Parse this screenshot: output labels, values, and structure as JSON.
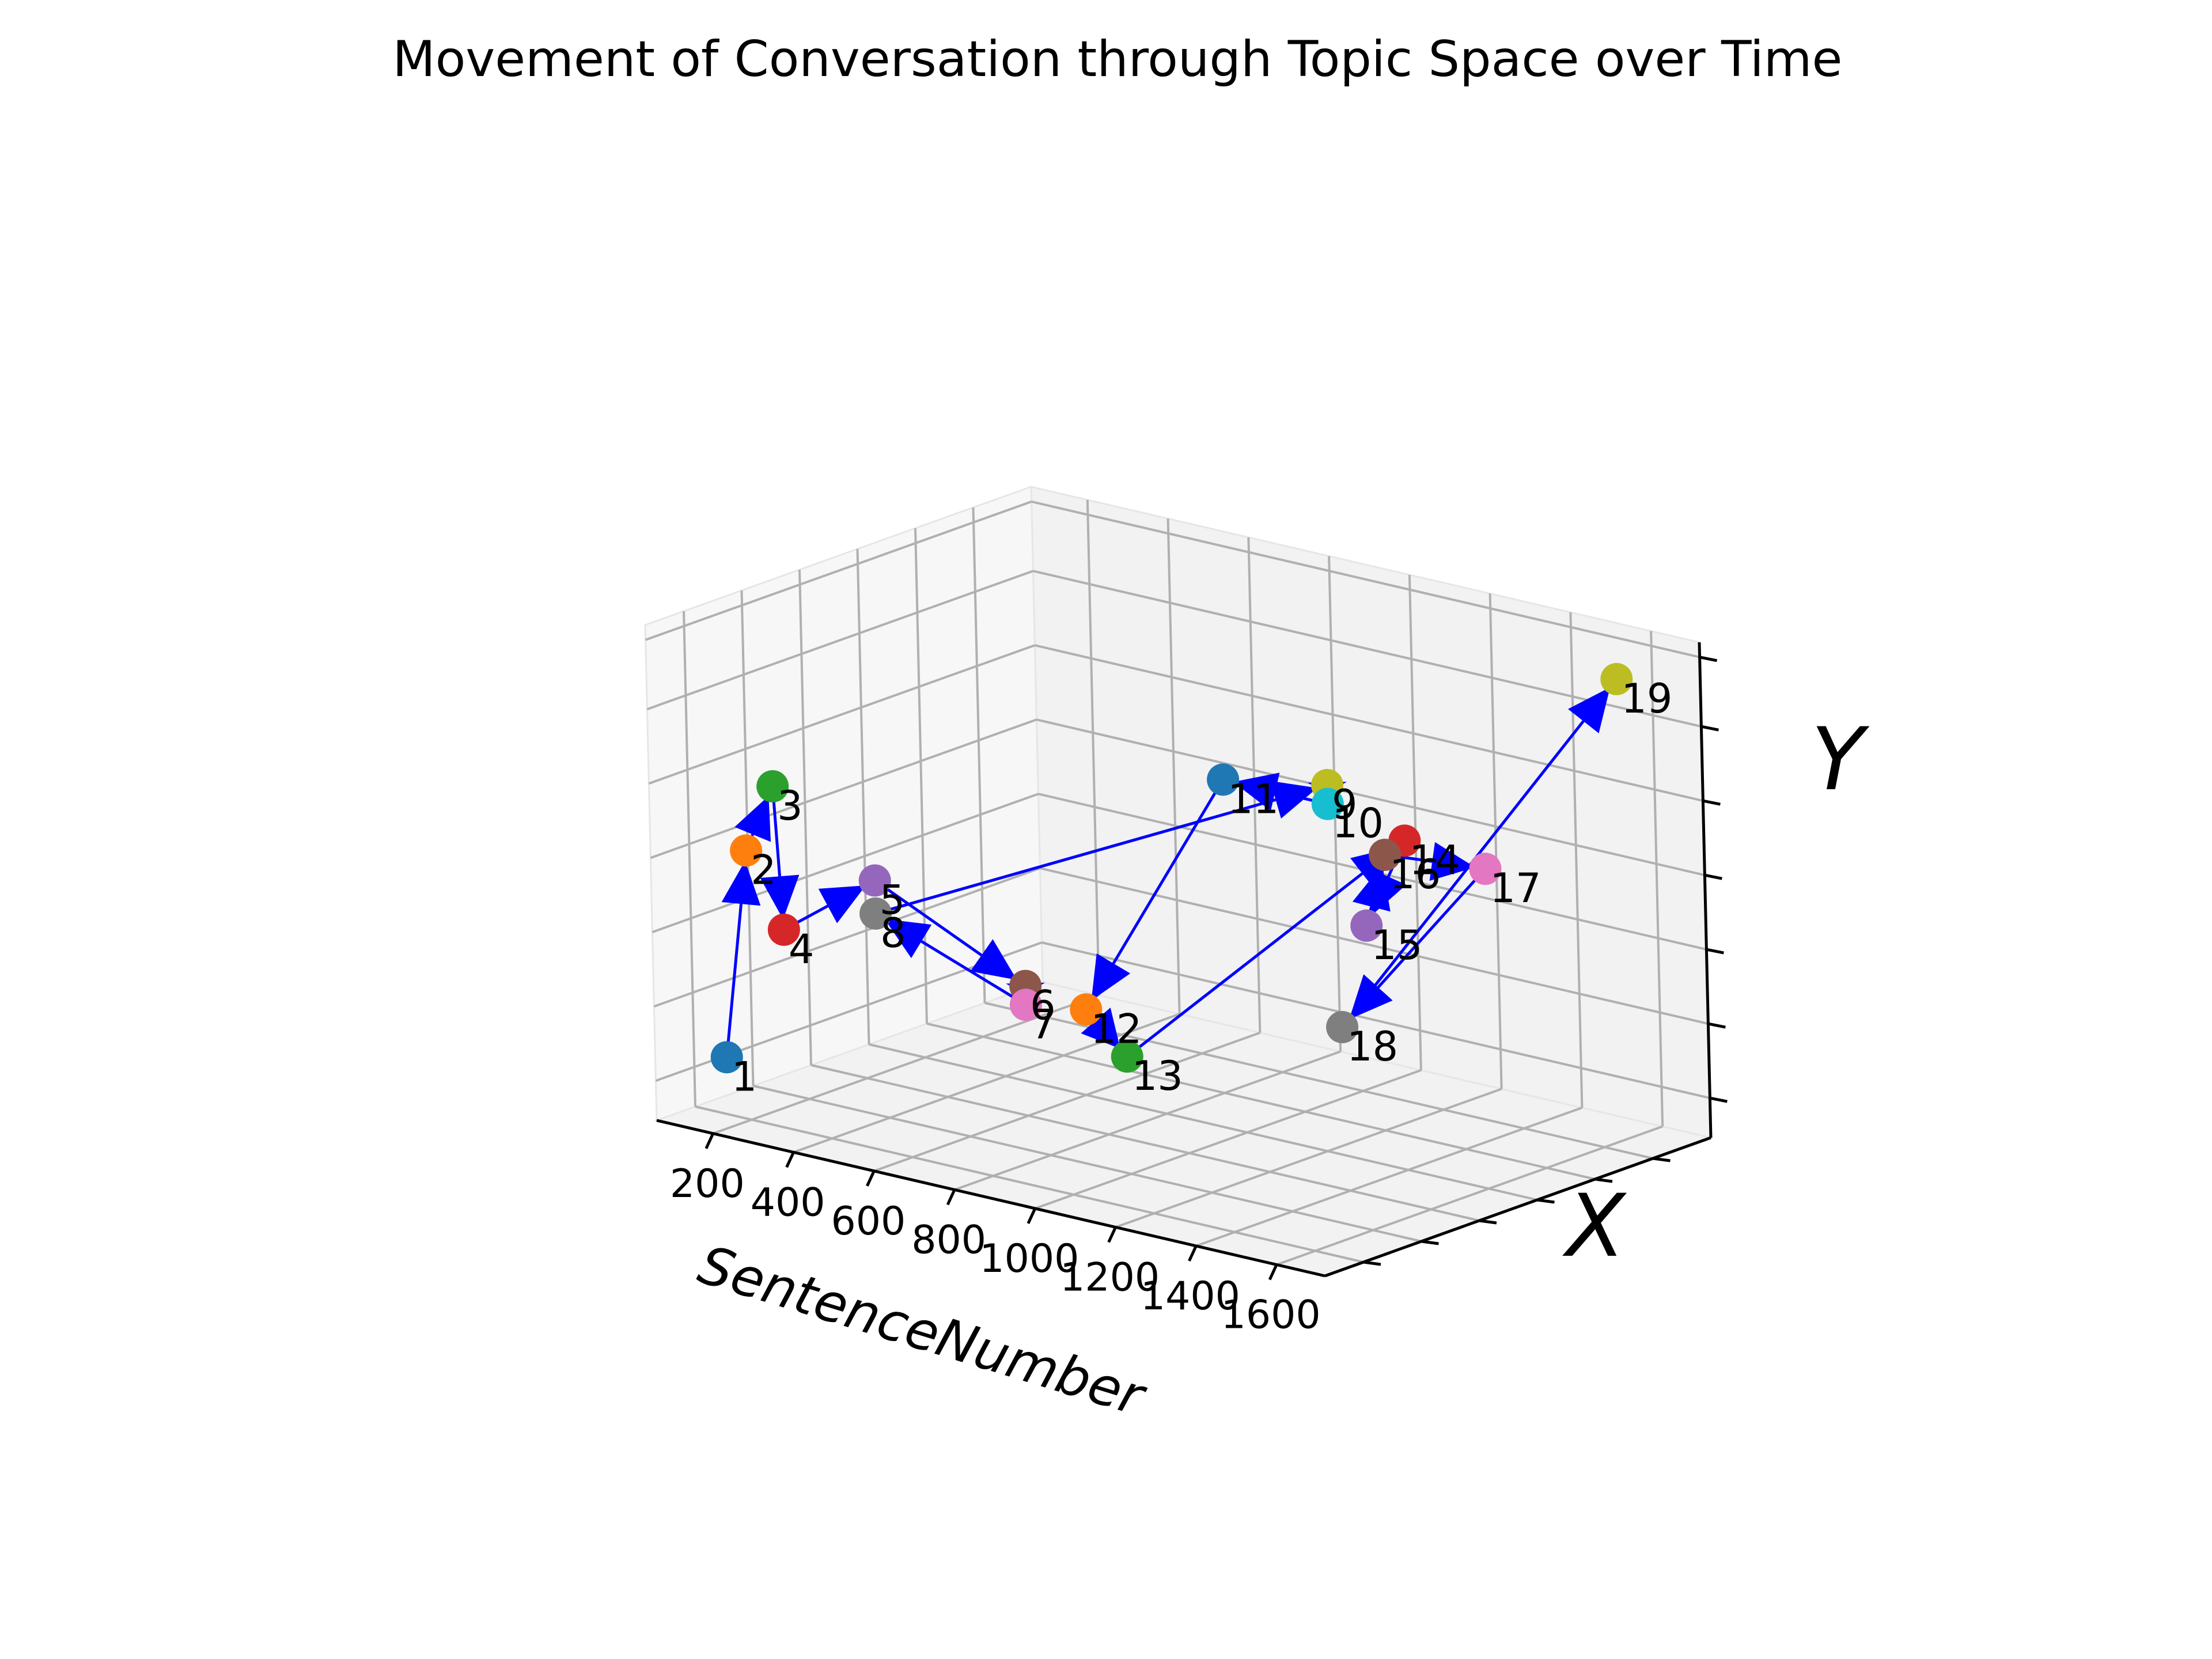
{
  "chart_data": {
    "type": "scatter",
    "projection": "3d",
    "title": "Movement of Conversation through Topic Space over Time",
    "xlabel": "SentenceNumber",
    "ylabel": "X",
    "zlabel": "Y",
    "xticks": [
      "200",
      "400",
      "600",
      "800",
      "1000",
      "1200",
      "1400",
      "1600"
    ],
    "arrow_color": "#0000ff",
    "points": [
      {
        "label": "1",
        "x": 100,
        "y": 0.0,
        "z": 0.1,
        "color": "#1f77b4"
      },
      {
        "label": "2",
        "x": 160,
        "y": 0.0,
        "z": 0.55,
        "color": "#ff7f0e"
      },
      {
        "label": "3",
        "x": 230,
        "y": 0.0,
        "z": 0.7,
        "color": "#2ca02c"
      },
      {
        "label": "4",
        "x": 250,
        "y": 0.0,
        "z": 0.4,
        "color": "#d62728"
      },
      {
        "label": "5",
        "x": 480,
        "y": 0.0,
        "z": 0.55,
        "color": "#9467bd"
      },
      {
        "label": "6",
        "x": 850,
        "y": 0.0,
        "z": 0.4,
        "color": "#8c564b"
      },
      {
        "label": "7",
        "x": 850,
        "y": 0.0,
        "z": 0.36,
        "color": "#e377c2"
      },
      {
        "label": "8",
        "x": 480,
        "y": 0.0,
        "z": 0.48,
        "color": "#7f7f7f"
      },
      {
        "label": "9",
        "x": 1060,
        "y": 0.2,
        "z": 0.7,
        "color": "#bcbd22"
      },
      {
        "label": "10",
        "x": 1060,
        "y": 0.2,
        "z": 0.66,
        "color": "#17becf"
      },
      {
        "label": "11",
        "x": 800,
        "y": 0.2,
        "z": 0.66,
        "color": "#1f77b4"
      },
      {
        "label": "12",
        "x": 1000,
        "y": 0.0,
        "z": 0.38,
        "color": "#ff7f0e"
      },
      {
        "label": "13",
        "x": 1100,
        "y": 0.0,
        "z": 0.3,
        "color": "#2ca02c"
      },
      {
        "label": "14",
        "x": 1250,
        "y": 0.2,
        "z": 0.62,
        "color": "#d62728"
      },
      {
        "label": "15",
        "x": 1150,
        "y": 0.2,
        "z": 0.42,
        "color": "#9467bd"
      },
      {
        "label": "16",
        "x": 1200,
        "y": 0.2,
        "z": 0.58,
        "color": "#8c564b"
      },
      {
        "label": "17",
        "x": 1450,
        "y": 0.2,
        "z": 0.6,
        "color": "#e377c2"
      },
      {
        "label": "18",
        "x": 1500,
        "y": 0.05,
        "z": 0.4,
        "color": "#7f7f7f"
      },
      {
        "label": "19",
        "x": 1650,
        "y": 0.25,
        "z": 1.0,
        "color": "#bcbd22"
      }
    ]
  }
}
